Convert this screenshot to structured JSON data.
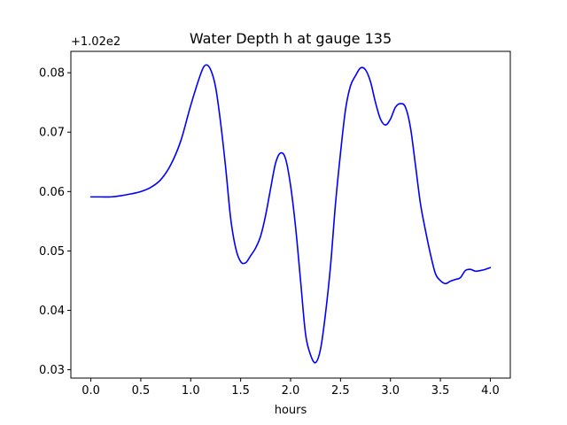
{
  "chart_data": {
    "type": "line",
    "title": "Water Depth h at gauge 135",
    "xlabel": "hours",
    "ylabel": "",
    "y_offset_label": "+1.02e2",
    "y_offset": 102,
    "xlim": [
      -0.2,
      4.2
    ],
    "ylim": [
      102.0286,
      102.0836
    ],
    "x_ticks": [
      "0.0",
      "0.5",
      "1.0",
      "1.5",
      "2.0",
      "2.5",
      "3.0",
      "3.5",
      "4.0"
    ],
    "y_ticks": [
      "0.03",
      "0.04",
      "0.05",
      "0.06",
      "0.07",
      "0.08"
    ],
    "grid": false,
    "legend": "none",
    "series": [
      {
        "color": "#0000ff",
        "x": [
          0.0,
          0.1,
          0.2,
          0.3,
          0.4,
          0.5,
          0.6,
          0.7,
          0.8,
          0.9,
          1.0,
          1.1,
          1.15,
          1.2,
          1.25,
          1.3,
          1.35,
          1.4,
          1.45,
          1.5,
          1.55,
          1.6,
          1.65,
          1.7,
          1.75,
          1.8,
          1.85,
          1.9,
          1.95,
          2.0,
          2.05,
          2.1,
          2.15,
          2.2,
          2.25,
          2.3,
          2.35,
          2.4,
          2.45,
          2.5,
          2.55,
          2.6,
          2.65,
          2.7,
          2.75,
          2.8,
          2.85,
          2.9,
          2.95,
          3.0,
          3.05,
          3.1,
          3.15,
          3.2,
          3.25,
          3.3,
          3.35,
          3.4,
          3.45,
          3.5,
          3.55,
          3.6,
          3.65,
          3.7,
          3.75,
          3.8,
          3.85,
          3.9,
          3.95,
          4.0
        ],
        "y": [
          102.0591,
          102.0591,
          102.0591,
          102.0593,
          102.0596,
          102.06,
          102.0607,
          102.062,
          102.0645,
          102.0685,
          102.0745,
          102.0798,
          102.0813,
          102.0805,
          102.0775,
          102.0715,
          102.064,
          102.0555,
          102.0505,
          102.0482,
          102.048,
          102.0492,
          102.0505,
          102.0525,
          102.056,
          102.0605,
          102.0648,
          102.0665,
          102.0655,
          102.061,
          102.054,
          102.045,
          102.036,
          102.0325,
          102.0312,
          102.0335,
          102.0395,
          102.0475,
          102.058,
          102.0665,
          102.0738,
          102.0778,
          102.0795,
          102.0808,
          102.0805,
          102.0785,
          102.075,
          102.0722,
          102.0712,
          102.0722,
          102.0742,
          102.0748,
          102.0742,
          102.0708,
          102.0645,
          102.058,
          102.0535,
          102.0495,
          102.0462,
          102.045,
          102.0445,
          102.0449,
          102.0452,
          102.0455,
          102.0467,
          102.0469,
          102.0466,
          102.0467,
          102.0469,
          102.0472
        ]
      }
    ]
  }
}
